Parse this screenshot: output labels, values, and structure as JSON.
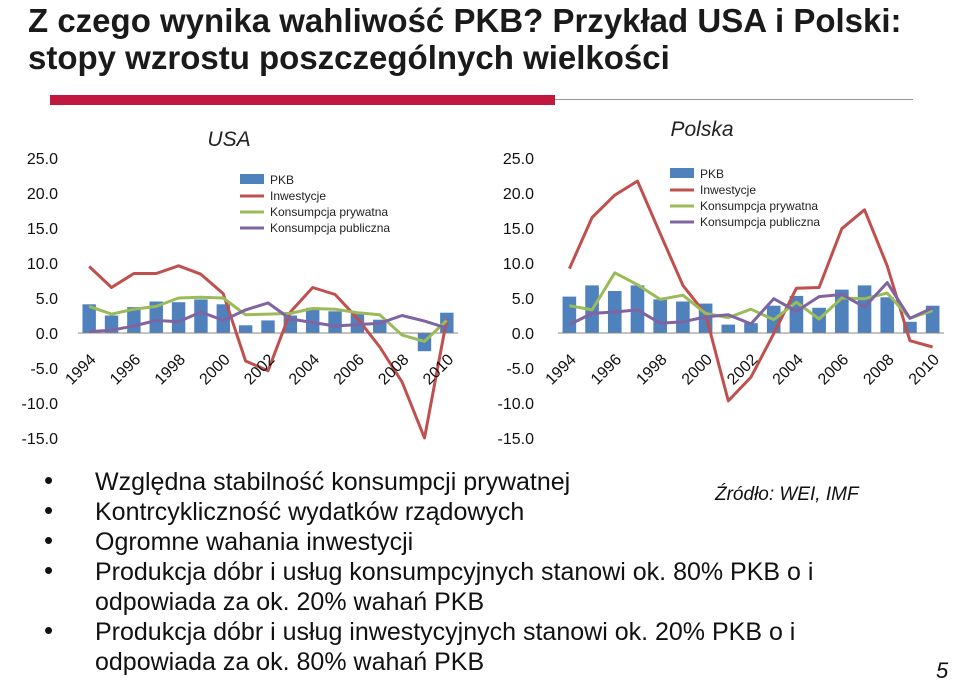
{
  "slide": {
    "title": "Z czego wynika wahliwość PKB? Przykład USA i Polski: stopy wzrostu poszczególnych wielkości",
    "bullets": [
      "Względna stabilność konsumpcji prywatnej",
      "Kontrcykliczność wydatków rządowych",
      "Ogromne wahania inwestycji",
      "Produkcja dóbr i usług konsumpcyjnych stanowi ok. 80% PKB o i odpowiada za ok. 20% wahań PKB",
      "Produkcja dóbr i usług inwestycyjnych stanowi ok. 20% PKB o i odpowiada za ok. 80% wahań PKB"
    ],
    "source": "Źródło: WEI, IMF",
    "page_number": "5",
    "accent_color": "#c0183e"
  },
  "chart_data": [
    {
      "type": "bar",
      "title": "USA",
      "x": [
        "1994",
        "1995",
        "1996",
        "1997",
        "1998",
        "1999",
        "2000",
        "2001",
        "2002",
        "2003",
        "2004",
        "2005",
        "2006",
        "2007",
        "2008",
        "2009",
        "2010"
      ],
      "tick_labels": [
        "1994",
        "1996",
        "1998",
        "2000",
        "2002",
        "2004",
        "2006",
        "2008",
        "2010"
      ],
      "y_ticks": [
        "25.0",
        "20.0",
        "15.0",
        "10.0",
        "5.0",
        "0.0",
        "-5.0",
        "-10.0",
        "-15.0"
      ],
      "ylim": [
        -15,
        25
      ],
      "legend_position": "top-right",
      "series": [
        {
          "name": "PKB",
          "type": "bar",
          "color": "#4f81bd",
          "values": [
            4.1,
            2.5,
            3.7,
            4.5,
            4.4,
            4.8,
            4.1,
            1.1,
            1.8,
            2.5,
            3.6,
            3.1,
            2.7,
            1.9,
            0,
            -2.6,
            2.9
          ]
        },
        {
          "name": "Inwestycje",
          "type": "line",
          "color": "#c0504d",
          "values": [
            9.5,
            6.5,
            8.5,
            8.5,
            9.6,
            8.4,
            5.6,
            -4.0,
            -5.4,
            3.0,
            6.5,
            5.5,
            2.1,
            -2.0,
            -7.0,
            -15.0,
            2.0
          ]
        },
        {
          "name": "Konsumpcja prywatna",
          "type": "line",
          "color": "#9bbb59",
          "values": [
            3.8,
            2.7,
            3.4,
            3.8,
            5.0,
            5.1,
            5.0,
            2.6,
            2.7,
            2.8,
            3.5,
            3.4,
            2.9,
            2.6,
            -0.3,
            -1.2,
            1.8
          ]
        },
        {
          "name": "Konsumpcja publiczna",
          "type": "line",
          "color": "#8064a2",
          "values": [
            0.2,
            0.4,
            1.0,
            1.8,
            1.6,
            3.0,
            1.8,
            3.3,
            4.3,
            2.0,
            1.5,
            1.0,
            1.2,
            1.4,
            2.5,
            1.7,
            0.7
          ]
        }
      ]
    },
    {
      "type": "bar",
      "title": "Polska",
      "x": [
        "1994",
        "1995",
        "1996",
        "1997",
        "1998",
        "1999",
        "2000",
        "2001",
        "2002",
        "2003",
        "2004",
        "2005",
        "2006",
        "2007",
        "2008",
        "2009",
        "2010"
      ],
      "tick_labels": [
        "1994",
        "1996",
        "1998",
        "2000",
        "2002",
        "2004",
        "2006",
        "2008",
        "2010"
      ],
      "y_ticks": [
        "25.0",
        "20.0",
        "15.0",
        "10.0",
        "5.0",
        "0.0",
        "-5.0",
        "-10.0",
        "-15.0"
      ],
      "ylim": [
        -15,
        25
      ],
      "legend_position": "top-right",
      "series": [
        {
          "name": "PKB",
          "type": "bar",
          "color": "#4f81bd",
          "values": [
            5.2,
            6.8,
            6.0,
            6.8,
            4.8,
            4.5,
            4.2,
            1.2,
            1.4,
            3.9,
            5.3,
            3.6,
            6.2,
            6.8,
            5.1,
            1.6,
            3.9
          ]
        },
        {
          "name": "Inwestycje",
          "type": "line",
          "color": "#c0504d",
          "values": [
            9.2,
            16.5,
            19.7,
            21.7,
            14.2,
            6.8,
            2.7,
            -9.7,
            -6.3,
            -0.1,
            6.4,
            6.5,
            14.9,
            17.6,
            9.6,
            -1.1,
            -2.0
          ]
        },
        {
          "name": "Konsumpcja prywatna",
          "type": "line",
          "color": "#9bbb59",
          "values": [
            3.9,
            3.3,
            8.6,
            6.9,
            4.8,
            5.4,
            2.8,
            2.2,
            3.4,
            1.9,
            4.4,
            2.0,
            5.0,
            4.9,
            5.7,
            2.1,
            3.2
          ]
        },
        {
          "name": "Konsumpcja publiczna",
          "type": "line",
          "color": "#8064a2",
          "values": [
            1.2,
            2.8,
            3.0,
            3.3,
            1.4,
            1.6,
            2.3,
            2.6,
            1.3,
            4.9,
            3.1,
            5.2,
            5.5,
            3.7,
            7.2,
            2.1,
            3.6
          ]
        }
      ]
    }
  ]
}
